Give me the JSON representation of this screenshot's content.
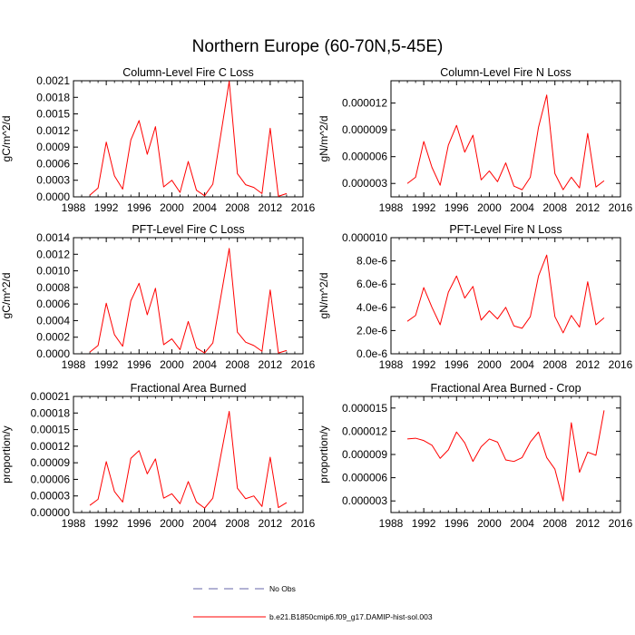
{
  "figure": {
    "title": "Northern Europe (60-70N,5-45E)",
    "legend": [
      {
        "label": "No Obs",
        "style": "dashed",
        "color": "#6666aa"
      },
      {
        "label": "b.e21.B1850cmip6.f09_g17.DAMIP-hist-sol.003",
        "style": "solid",
        "color": "#ff0000"
      }
    ]
  },
  "chart_data": [
    {
      "type": "line",
      "title": "Column-Level Fire C Loss",
      "ylabel": "gC/m^2/d",
      "xlim": [
        1988,
        2016
      ],
      "xticks": [
        "1988",
        "1992",
        "1996",
        "2000",
        "2004",
        "2008",
        "2012",
        "2016"
      ],
      "ylim": [
        0,
        0.0021
      ],
      "yticks": [
        "0.0000",
        "0.0003",
        "0.0006",
        "0.0009",
        "0.0012",
        "0.0015",
        "0.0018",
        "0.0021"
      ],
      "series": [
        {
          "color": "#ff0000",
          "x": [
            1990,
            1991,
            1992,
            1993,
            1994,
            1995,
            1996,
            1997,
            1998,
            1999,
            2000,
            2001,
            2002,
            2003,
            2004,
            2005,
            2006,
            2007,
            2008,
            2009,
            2010,
            2011,
            2012,
            2013,
            2014
          ],
          "y": [
            3e-05,
            0.00016,
            0.00099,
            0.00038,
            0.00014,
            0.00103,
            0.00138,
            0.00077,
            0.00127,
            0.00018,
            0.0003,
            8e-05,
            0.00064,
            0.00012,
            2e-05,
            0.00023,
            0.00115,
            0.00209,
            0.00042,
            0.00022,
            0.00017,
            6e-05,
            0.00124,
            1e-05,
            6e-05
          ]
        }
      ]
    },
    {
      "type": "line",
      "title": "Column-Level Fire N Loss",
      "ylabel": "gN/m^2/d",
      "xlim": [
        1988,
        2016
      ],
      "xticks": [
        "1988",
        "1992",
        "1996",
        "2000",
        "2004",
        "2008",
        "2012",
        "2016"
      ],
      "ylim": [
        1.5e-06,
        1.45e-05
      ],
      "yticks": [
        "0.000003",
        "0.000006",
        "0.000009",
        "0.000012"
      ],
      "ytickvalues": [
        3e-06,
        6e-06,
        9e-06,
        1.2e-05
      ],
      "series": [
        {
          "color": "#ff0000",
          "x": [
            1990,
            1991,
            1992,
            1993,
            1994,
            1995,
            1996,
            1997,
            1998,
            1999,
            2000,
            2001,
            2002,
            2003,
            2004,
            2005,
            2006,
            2007,
            2008,
            2009,
            2010,
            2011,
            2012,
            2013,
            2014
          ],
          "y": [
            3e-06,
            3.7e-06,
            7.7e-06,
            4.8e-06,
            2.8e-06,
            7.3e-06,
            9.5e-06,
            6.5e-06,
            8.4e-06,
            3.4e-06,
            4.4e-06,
            3.2e-06,
            5.3e-06,
            2.7e-06,
            2.3e-06,
            3.7e-06,
            9.3e-06,
            1.29e-05,
            4.1e-06,
            2.3e-06,
            3.7e-06,
            2.5e-06,
            8.6e-06,
            2.6e-06,
            3.3e-06
          ]
        }
      ]
    },
    {
      "type": "line",
      "title": "PFT-Level Fire C Loss",
      "ylabel": "gC/m^2/d",
      "xlim": [
        1988,
        2016
      ],
      "xticks": [
        "1988",
        "1992",
        "1996",
        "2000",
        "2004",
        "2008",
        "2012",
        "2016"
      ],
      "ylim": [
        0,
        0.0014
      ],
      "yticks": [
        "0.0000",
        "0.0002",
        "0.0004",
        "0.0006",
        "0.0008",
        "0.0010",
        "0.0012",
        "0.0014"
      ],
      "series": [
        {
          "color": "#ff0000",
          "x": [
            1990,
            1991,
            1992,
            1993,
            1994,
            1995,
            1996,
            1997,
            1998,
            1999,
            2000,
            2001,
            2002,
            2003,
            2004,
            2005,
            2006,
            2007,
            2008,
            2009,
            2010,
            2011,
            2012,
            2013,
            2014
          ],
          "y": [
            2e-05,
            0.0001,
            0.00061,
            0.00023,
            9e-05,
            0.00064,
            0.00085,
            0.00047,
            0.00079,
            0.00011,
            0.00018,
            5e-05,
            0.00039,
            7e-05,
            1e-05,
            0.00013,
            0.0007,
            0.00127,
            0.00026,
            0.00014,
            0.0001,
            3e-05,
            0.00077,
            1e-05,
            4e-05
          ]
        }
      ]
    },
    {
      "type": "line",
      "title": "PFT-Level Fire N Loss",
      "ylabel": "gN/m^2/d",
      "xlim": [
        1988,
        2016
      ],
      "xticks": [
        "1988",
        "1992",
        "1996",
        "2000",
        "2004",
        "2008",
        "2012",
        "2016"
      ],
      "ylim": [
        0,
        1e-05
      ],
      "yticks": [
        "0.0e-6",
        "2.0e-6",
        "4.0e-6",
        "6.0e-6",
        "8.0e-6",
        "0.000010"
      ],
      "series": [
        {
          "color": "#ff0000",
          "x": [
            1990,
            1991,
            1992,
            1993,
            1994,
            1995,
            1996,
            1997,
            1998,
            1999,
            2000,
            2001,
            2002,
            2003,
            2004,
            2005,
            2006,
            2007,
            2008,
            2009,
            2010,
            2011,
            2012,
            2013,
            2014
          ],
          "y": [
            2.8e-06,
            3.3e-06,
            5.7e-06,
            4e-06,
            2.5e-06,
            5.3e-06,
            6.7e-06,
            4.8e-06,
            5.8e-06,
            2.9e-06,
            3.7e-06,
            3e-06,
            4e-06,
            2.4e-06,
            2.2e-06,
            3.2e-06,
            6.7e-06,
            8.5e-06,
            3.2e-06,
            1.8e-06,
            3.3e-06,
            2.3e-06,
            6.2e-06,
            2.5e-06,
            3.1e-06
          ]
        }
      ]
    },
    {
      "type": "line",
      "title": "Fractional Area Burned",
      "ylabel": "proportion/y",
      "xlim": [
        1988,
        2016
      ],
      "xticks": [
        "1988",
        "1992",
        "1996",
        "2000",
        "2004",
        "2008",
        "2012",
        "2016"
      ],
      "ylim": [
        0,
        0.00021
      ],
      "yticks": [
        "0.00000",
        "0.00003",
        "0.00006",
        "0.00009",
        "0.00012",
        "0.00015",
        "0.00018",
        "0.00021"
      ],
      "series": [
        {
          "color": "#ff0000",
          "x": [
            1990,
            1991,
            1992,
            1993,
            1994,
            1995,
            1996,
            1997,
            1998,
            1999,
            2000,
            2001,
            2002,
            2003,
            2004,
            2005,
            2006,
            2007,
            2008,
            2009,
            2010,
            2011,
            2012,
            2013,
            2014
          ],
          "y": [
            1.3e-05,
            2.4e-05,
            9.2e-05,
            3.8e-05,
            1.9e-05,
            9.8e-05,
            0.000112,
            7e-05,
            9.7e-05,
            2.6e-05,
            3.4e-05,
            1.6e-05,
            5.6e-05,
            1.9e-05,
            8e-06,
            2.6e-05,
            0.000105,
            0.000183,
            4.4e-05,
            2.5e-05,
            3e-05,
            1.1e-05,
            0.0001,
            9e-06,
            1.8e-05
          ]
        }
      ]
    },
    {
      "type": "line",
      "title": "Fractional Area Burned - Crop",
      "ylabel": "proportion/y",
      "xlim": [
        1988,
        2016
      ],
      "xticks": [
        "1988",
        "1992",
        "1996",
        "2000",
        "2004",
        "2008",
        "2012",
        "2016"
      ],
      "ylim": [
        1.5e-06,
        1.65e-05
      ],
      "yticks": [
        "0.000003",
        "0.000006",
        "0.000009",
        "0.000012",
        "0.000015"
      ],
      "ytickvalues": [
        3e-06,
        6e-06,
        9e-06,
        1.2e-05,
        1.5e-05
      ],
      "series": [
        {
          "color": "#ff0000",
          "x": [
            1990,
            1991,
            1992,
            1993,
            1994,
            1995,
            1996,
            1997,
            1998,
            1999,
            2000,
            2001,
            2002,
            2003,
            2004,
            2005,
            2006,
            2007,
            2008,
            2009,
            2010,
            2011,
            2012,
            2013,
            2014
          ],
          "y": [
            1.1e-05,
            1.11e-05,
            1.08e-05,
            1.02e-05,
            8.5e-06,
            9.6e-06,
            1.19e-05,
            1.05e-05,
            8.1e-06,
            1e-05,
            1.1e-05,
            1.06e-05,
            8.3e-06,
            8.1e-06,
            8.6e-06,
            1.06e-05,
            1.19e-05,
            8.6e-06,
            7.1e-06,
            3e-06,
            1.31e-05,
            6.7e-06,
            9.3e-06,
            8.9e-06,
            1.47e-05
          ]
        }
      ]
    }
  ]
}
